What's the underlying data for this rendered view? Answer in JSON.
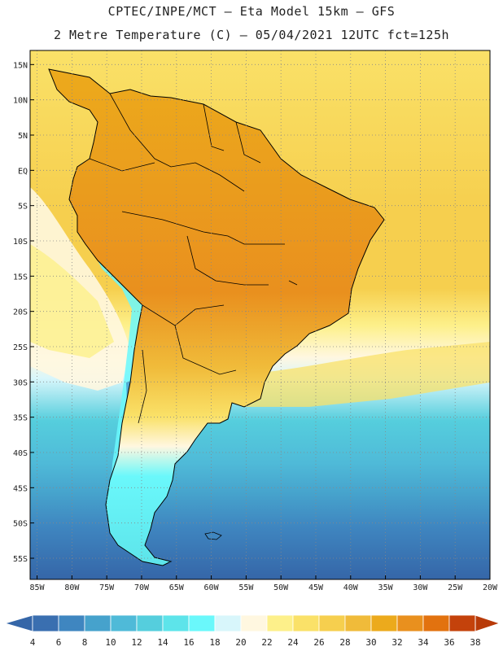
{
  "title_line1": "CPTEC/INPE/MCT –  Eta Model 15km – GFS",
  "title_line2": "2 Metre Temperature (C) – 05/04/2021 12UTC fct=125h",
  "lat_labels": [
    "15N",
    "10N",
    "5N",
    "EQ",
    "5S",
    "10S",
    "15S",
    "20S",
    "25S",
    "30S",
    "35S",
    "40S",
    "45S",
    "50S",
    "55S"
  ],
  "lat_values": [
    15,
    10,
    5,
    0,
    -5,
    -10,
    -15,
    -20,
    -25,
    -30,
    -35,
    -40,
    -45,
    -50,
    -55
  ],
  "lon_labels": [
    "85W",
    "80W",
    "75W",
    "70W",
    "65W",
    "60W",
    "55W",
    "50W",
    "45W",
    "40W",
    "35W",
    "30W",
    "25W",
    "20W"
  ],
  "lon_values": [
    -85,
    -80,
    -75,
    -70,
    -65,
    -60,
    -55,
    -50,
    -45,
    -40,
    -35,
    -30,
    -25,
    -20
  ],
  "colorbar": {
    "labels": [
      "4",
      "6",
      "8",
      "10",
      "12",
      "14",
      "16",
      "18",
      "20",
      "22",
      "24",
      "26",
      "28",
      "30",
      "32",
      "34",
      "36",
      "38"
    ],
    "colors": [
      "#3a6fb0",
      "#3f86c0",
      "#46a2cc",
      "#4fbad8",
      "#55cedd",
      "#5de4ea",
      "#6af8fb",
      "#d8f6fb",
      "#fff7e0",
      "#fdf08a",
      "#fae168",
      "#f6cf4e",
      "#f0bb3a",
      "#ecaa1c",
      "#e9901e",
      "#e2720f",
      "#c4420b"
    ],
    "low_color": "#3566a8",
    "high_color": "#b83a08"
  },
  "map": {
    "lon_range": [
      -86,
      -20
    ],
    "lat_range": [
      -58,
      17
    ],
    "region": "South America",
    "ocean_north_color": "#f6cf4e",
    "ocean_south_color": "#3a6fb0"
  }
}
